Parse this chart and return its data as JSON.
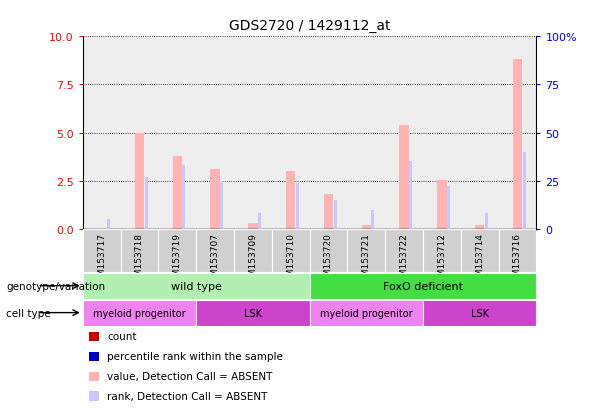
{
  "title": "GDS2720 / 1429112_at",
  "samples": [
    "GSM153717",
    "GSM153718",
    "GSM153719",
    "GSM153707",
    "GSM153709",
    "GSM153710",
    "GSM153720",
    "GSM153721",
    "GSM153722",
    "GSM153712",
    "GSM153714",
    "GSM153716"
  ],
  "count_values": [
    0.0,
    5.0,
    3.8,
    3.1,
    0.3,
    3.0,
    1.8,
    0.2,
    5.4,
    2.55,
    0.2,
    8.8
  ],
  "rank_values": [
    5,
    27,
    33,
    25,
    8,
    24,
    15,
    10,
    35,
    22,
    8,
    40
  ],
  "ylim_left": [
    0,
    10
  ],
  "ylim_right": [
    0,
    100
  ],
  "yticks_left": [
    0,
    2.5,
    5,
    7.5,
    10
  ],
  "yticks_right": [
    0,
    25,
    50,
    75,
    100
  ],
  "bar_color_absent": "#ffb3b3",
  "bar_color_absent_rank": "#c8c8ff",
  "dot_color_count": "#cc0000",
  "dot_color_rank": "#0000cc",
  "sample_bg_color": "#d0d0d0",
  "white_bg": "#ffffff",
  "genotype_groups": [
    {
      "label": "wild type",
      "color": "#b2f0b2",
      "start": 0,
      "end": 6
    },
    {
      "label": "FoxO deficient",
      "color": "#44dd44",
      "start": 6,
      "end": 12
    }
  ],
  "cell_type_groups": [
    {
      "label": "myeloid progenitor",
      "color": "#ee82ee",
      "start": 0,
      "end": 3
    },
    {
      "label": "LSK",
      "color": "#cc44cc",
      "start": 3,
      "end": 6
    },
    {
      "label": "myeloid progenitor",
      "color": "#ee82ee",
      "start": 6,
      "end": 9
    },
    {
      "label": "LSK",
      "color": "#cc44cc",
      "start": 9,
      "end": 12
    }
  ],
  "legend_items": [
    {
      "label": "count",
      "color": "#cc0000"
    },
    {
      "label": "percentile rank within the sample",
      "color": "#0000cc"
    },
    {
      "label": "value, Detection Call = ABSENT",
      "color": "#ffb3b3"
    },
    {
      "label": "rank, Detection Call = ABSENT",
      "color": "#c8c8ff"
    }
  ],
  "bar_width": 0.25,
  "rank_bar_width": 0.08
}
